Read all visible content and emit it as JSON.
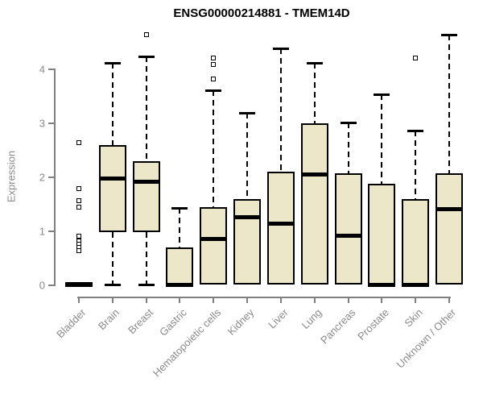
{
  "title": "ENSG00000214881 - TMEM14D",
  "colors": {
    "box_fill": "#ECE7C9",
    "box_border": "#000000",
    "median": "#000000",
    "axis": "#808080",
    "tick_label": "#8A8A8A",
    "title": "#000000",
    "background": "#FFFFFF"
  },
  "chart_data": {
    "type": "boxplot",
    "title": "ENSG00000214881 - TMEM14D",
    "xlabel": "",
    "ylabel": "Expression",
    "ylim": [
      0,
      4.7
    ],
    "yticks": [
      0,
      1,
      2,
      3,
      4
    ],
    "grid": false,
    "legend": false,
    "categories": [
      "Bladder",
      "Brain",
      "Breast",
      "Gastric",
      "Hematopoietic cells",
      "Kidney",
      "Liver",
      "Lung",
      "Pancreas",
      "Prostate",
      "Skin",
      "Unknown / Other"
    ],
    "series": [
      {
        "name": "Bladder",
        "low": 0,
        "q1": 0,
        "median": 0,
        "q3": 0.05,
        "high": 0.05,
        "outliers": [
          2.63,
          1.77,
          1.55,
          1.43,
          0.9,
          0.8,
          0.74,
          0.68,
          0.62
        ]
      },
      {
        "name": "Brain",
        "low": 0,
        "q1": 0.97,
        "median": 1.97,
        "q3": 2.58,
        "high": 4.1,
        "outliers": []
      },
      {
        "name": "Breast",
        "low": 0,
        "q1": 0.97,
        "median": 1.91,
        "q3": 2.28,
        "high": 4.22,
        "outliers": [
          4.63
        ]
      },
      {
        "name": "Gastric",
        "low": 0,
        "q1": 0,
        "median": 0,
        "q3": 0.69,
        "high": 1.42,
        "outliers": []
      },
      {
        "name": "Hematopoietic cells",
        "low": 0,
        "q1": 0,
        "median": 0.84,
        "q3": 1.43,
        "high": 3.6,
        "outliers": [
          3.81,
          4.07,
          4.19
        ]
      },
      {
        "name": "Kidney",
        "low": 0,
        "q1": 0,
        "median": 1.24,
        "q3": 1.58,
        "high": 3.18,
        "outliers": []
      },
      {
        "name": "Liver",
        "low": 0,
        "q1": 0,
        "median": 1.13,
        "q3": 2.09,
        "high": 4.37,
        "outliers": []
      },
      {
        "name": "Lung",
        "low": 0,
        "q1": 0,
        "median": 2.03,
        "q3": 2.99,
        "high": 4.1,
        "outliers": []
      },
      {
        "name": "Pancreas",
        "low": 0,
        "q1": 0,
        "median": 0.9,
        "q3": 2.06,
        "high": 3.0,
        "outliers": []
      },
      {
        "name": "Prostate",
        "low": 0,
        "q1": 0,
        "median": 0,
        "q3": 1.87,
        "high": 3.52,
        "outliers": []
      },
      {
        "name": "Skin",
        "low": 0,
        "q1": 0,
        "median": 0,
        "q3": 1.58,
        "high": 2.85,
        "outliers": [
          4.19
        ]
      },
      {
        "name": "Unknown / Other",
        "low": 0,
        "q1": 0,
        "median": 1.39,
        "q3": 2.06,
        "high": 4.63,
        "outliers": []
      }
    ]
  }
}
